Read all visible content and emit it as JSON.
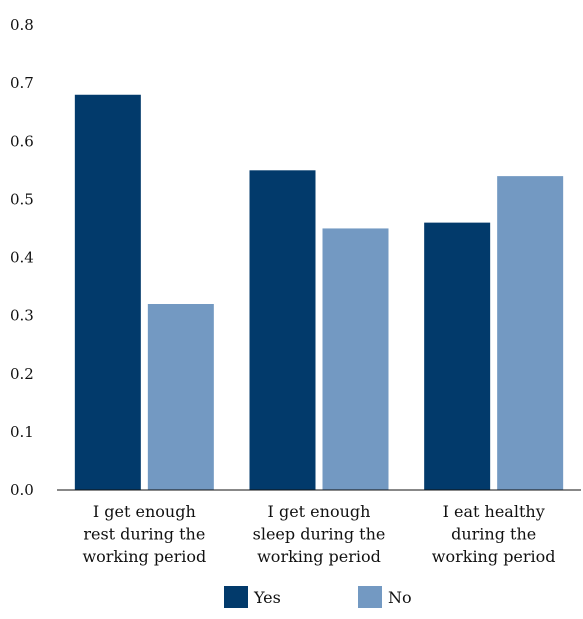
{
  "chart_data": {
    "type": "bar",
    "categories": [
      [
        "I get enough",
        "rest during the",
        "working period"
      ],
      [
        "I get enough",
        "sleep during the",
        "working period"
      ],
      [
        "I eat healthy",
        "during the",
        "working period"
      ]
    ],
    "series": [
      {
        "name": "Yes",
        "values": [
          0.68,
          0.55,
          0.46
        ],
        "color": "#023a6b"
      },
      {
        "name": "No",
        "values": [
          0.32,
          0.45,
          0.54
        ],
        "color": "#7399c2"
      }
    ],
    "y_ticks": [
      "0.0",
      "0.1",
      "0.2",
      "0.3",
      "0.4",
      "0.5",
      "0.6",
      "0.7",
      "0.8"
    ],
    "ylim": [
      0,
      0.8
    ],
    "grid": false,
    "legend_position": "bottom-center",
    "title": "",
    "xlabel": "",
    "ylabel": ""
  }
}
